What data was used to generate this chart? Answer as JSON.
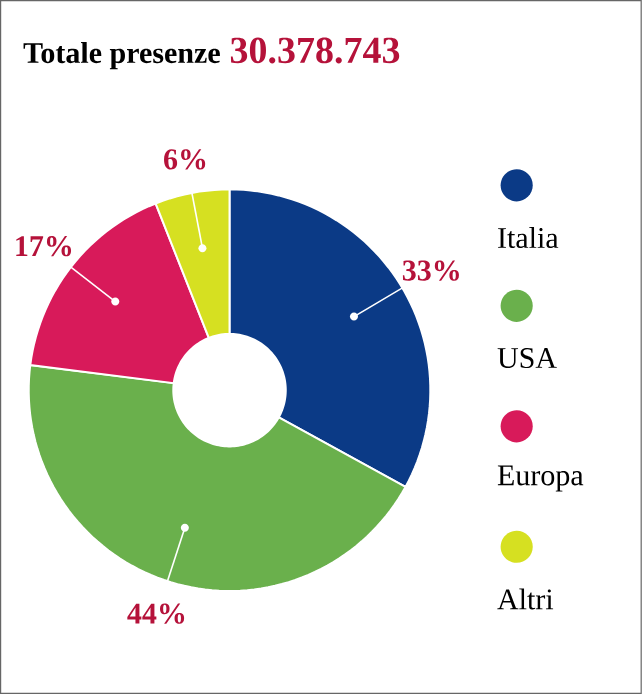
{
  "chart_data": {
    "type": "donut",
    "title": "Totale presenze",
    "subtitle": "30.378.743",
    "categories": [
      "Italia",
      "USA",
      "Europa",
      "Altri"
    ],
    "values": [
      33,
      44,
      17,
      6
    ],
    "colors": [
      "#0b3a86",
      "#6ab04c",
      "#d81a5a",
      "#d6e021"
    ],
    "value_labels": [
      "33%",
      "44%",
      "17%",
      "6%"
    ],
    "legend": "right"
  }
}
